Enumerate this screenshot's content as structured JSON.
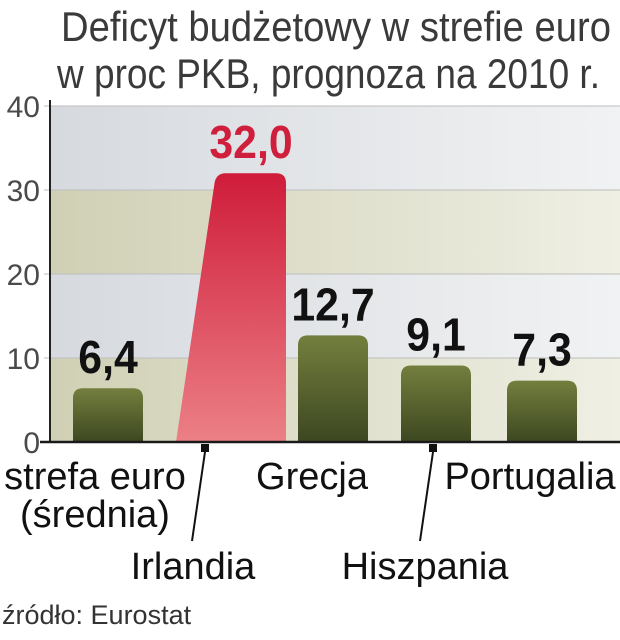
{
  "chart_data": {
    "type": "bar",
    "title": "Deficyt budżetowy w strefie euro",
    "subtitle": "w proc PKB, prognoza na 2010 r.",
    "categories": [
      "strefa euro (średnia)",
      "Irlandia",
      "Grecja",
      "Hiszpania",
      "Portugalia"
    ],
    "values": [
      6.4,
      32.0,
      12.7,
      9.1,
      7.3
    ],
    "data_labels": [
      "6,4",
      "32,0",
      "12,7",
      "9,1",
      "7,3"
    ],
    "ylim": [
      0,
      40
    ],
    "yticks": [
      0,
      10,
      20,
      30,
      40
    ],
    "grid": true,
    "highlight_index": 1,
    "colors": {
      "bar_top": "#737f3e",
      "bar_bottom": "#3d4720",
      "highlight_top": "#cf1c3a",
      "highlight_bottom": "#ec8086",
      "highlight_label": "#d01f3c",
      "label": "#111111"
    }
  },
  "source": "źródło: Eurostat"
}
